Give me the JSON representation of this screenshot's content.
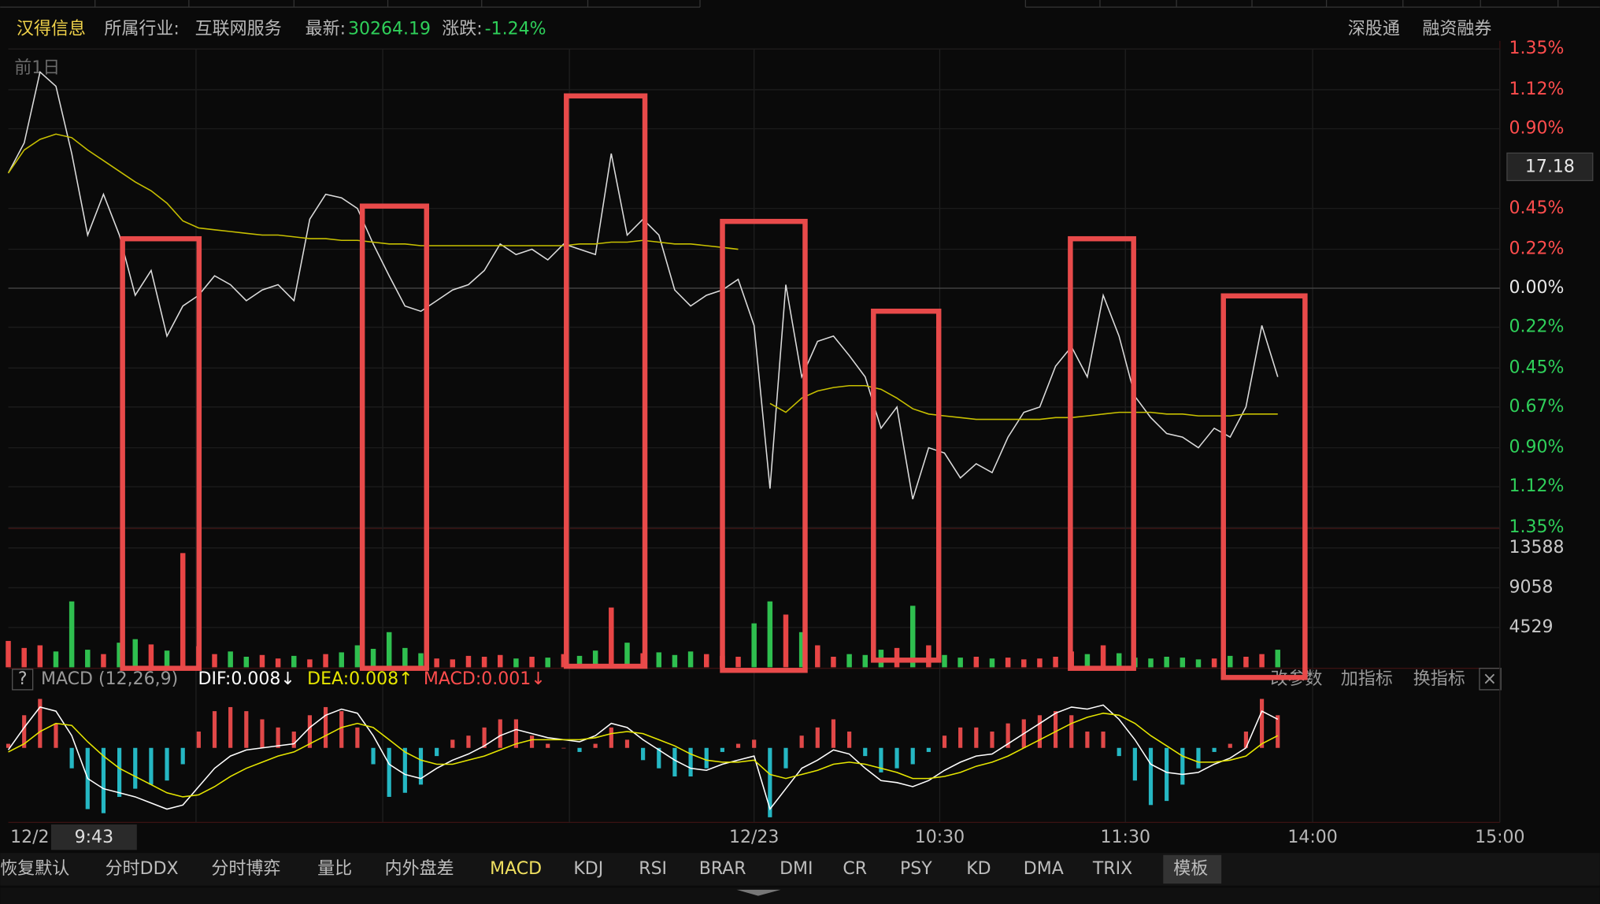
{
  "header": {
    "stock": "汉得信息",
    "industry_label": "所属行业:",
    "industry": "互联网服务",
    "latest_label": "最新:",
    "latest": "30264.19",
    "change_label": "涨跌:",
    "change": "-1.24%",
    "links": [
      "深股通",
      "融资融券"
    ]
  },
  "cursor": {
    "price": "17.18",
    "time": "9:43"
  },
  "chart_data": [
    {
      "type": "line",
      "annotation": "前1日",
      "series": [
        {
          "color": "#dcdcdc",
          "values": [
            0.65,
            0.82,
            1.22,
            1.14,
            0.76,
            0.3,
            0.53,
            0.3,
            -0.04,
            0.1,
            -0.27,
            -0.1,
            -0.04,
            0.07,
            0.02,
            -0.07,
            -0.01,
            0.02,
            -0.07,
            0.39,
            0.53,
            0.51,
            0.45,
            0.25,
            0.07,
            -0.1,
            -0.13,
            -0.07,
            -0.01,
            0.02,
            0.1,
            0.25,
            0.19,
            0.22,
            0.16,
            0.25,
            0.22,
            0.19,
            0.76,
            0.3,
            0.39,
            0.3,
            -0.01,
            -0.1,
            -0.04,
            -0.01,
            0.05,
            -0.21,
            -1.13,
            0.02,
            -0.5,
            -0.3,
            -0.27,
            -0.38,
            -0.5,
            -0.79,
            -0.67,
            -1.19,
            -0.9,
            -0.93,
            -1.07,
            -0.99,
            -1.04,
            -0.84,
            -0.7,
            -0.67,
            -0.44,
            -0.33,
            -0.5,
            -0.04,
            -0.27,
            -0.61,
            -0.73,
            -0.82,
            -0.84,
            -0.9,
            -0.79,
            -0.84,
            -0.67,
            -0.21,
            -0.5
          ]
        },
        {
          "color": "#c8c000",
          "values": [
            0.65,
            0.78,
            0.84,
            0.87,
            0.85,
            0.78,
            0.72,
            0.66,
            0.6,
            0.55,
            0.48,
            0.38,
            0.34,
            0.33,
            0.32,
            0.31,
            0.3,
            0.3,
            0.29,
            0.28,
            0.28,
            0.27,
            0.27,
            0.26,
            0.25,
            0.25,
            0.24,
            0.24,
            0.24,
            0.24,
            0.24,
            0.24,
            0.24,
            0.24,
            0.24,
            0.24,
            0.25,
            0.25,
            0.26,
            0.26,
            0.27,
            0.26,
            0.25,
            0.25,
            0.24,
            0.23,
            0.22,
            null,
            -0.65,
            -0.7,
            -0.62,
            -0.58,
            -0.56,
            -0.55,
            -0.55,
            -0.57,
            -0.62,
            -0.68,
            -0.71,
            -0.72,
            -0.73,
            -0.74,
            -0.74,
            -0.74,
            -0.74,
            -0.74,
            -0.73,
            -0.73,
            -0.72,
            -0.71,
            -0.7,
            -0.7,
            -0.7,
            -0.71,
            -0.71,
            -0.72,
            -0.72,
            -0.72,
            -0.71,
            -0.71,
            -0.71
          ]
        }
      ],
      "ylim": [
        -1.35,
        1.35
      ],
      "yticks": [
        {
          "value": 1.35,
          "label": "1.35%"
        },
        {
          "value": 1.12,
          "label": "1.12%"
        },
        {
          "value": 0.9,
          "label": "0.90%"
        },
        {
          "value": 0.45,
          "label": "0.45%"
        },
        {
          "value": 0.22,
          "label": "0.22%"
        },
        {
          "value": 0,
          "label": "0.00%"
        },
        {
          "value": -0.22,
          "label": "0.22%"
        },
        {
          "value": -0.45,
          "label": "0.45%"
        },
        {
          "value": -0.67,
          "label": "0.67%"
        },
        {
          "value": -0.9,
          "label": "0.90%"
        },
        {
          "value": -1.12,
          "label": "1.12%"
        },
        {
          "value": -1.35,
          "label": "1.35%"
        }
      ],
      "xlim": [
        0,
        94
      ],
      "xticks": [
        {
          "value": 0,
          "label": "12/2"
        },
        {
          "value": 47,
          "label": "12/23"
        },
        {
          "value": 58.7,
          "label": "10:30"
        },
        {
          "value": 70.4,
          "label": "11:30"
        },
        {
          "value": 82.2,
          "label": "14:00"
        },
        {
          "value": 94,
          "label": "15:00"
        }
      ],
      "up_color": "#ff4d4d",
      "flat_color": "#e8e8e8",
      "down_color": "#2fd05a"
    },
    {
      "type": "bar",
      "values": [
        3000,
        2200,
        2500,
        1800,
        7500,
        2000,
        1500,
        2800,
        3200,
        2600,
        1900,
        13000,
        2400,
        1500,
        1800,
        1200,
        1400,
        1000,
        1300,
        900,
        1500,
        1700,
        2500,
        2100,
        4000,
        2200,
        1600,
        1000,
        900,
        1300,
        1200,
        1400,
        1000,
        1200,
        1100,
        1500,
        1300,
        1900,
        6800,
        2800,
        1600,
        1700,
        1400,
        1800,
        1500,
        1300,
        1200,
        5000,
        7500,
        6000,
        4000,
        2500,
        1200,
        1500,
        1400,
        2000,
        2200,
        7000,
        2500,
        1400,
        1100,
        1200,
        1000,
        1100,
        900,
        1000,
        1200,
        1800,
        1500,
        2500,
        1600,
        1100,
        1000,
        1200,
        1100,
        900,
        1000,
        1300,
        1200,
        1500,
        2000
      ],
      "ylim": [
        0,
        13588
      ],
      "yticks": [
        4529,
        9058,
        13588
      ],
      "up_color": "#e84545",
      "down_color": "#2fbf4f"
    },
    {
      "type": "line",
      "series": [
        {
          "color": "#ffffff",
          "values": [
            -0.001,
            0.01,
            0.02,
            0.018,
            0.006,
            -0.015,
            -0.02,
            -0.022,
            -0.024,
            -0.027,
            -0.03,
            -0.028,
            -0.019,
            -0.01,
            -0.004,
            -0.001,
            0.0,
            0.001,
            0.002,
            0.01,
            0.016,
            0.019,
            0.017,
            0.006,
            -0.008,
            -0.013,
            -0.015,
            -0.01,
            -0.006,
            -0.003,
            0.001,
            0.006,
            0.009,
            0.007,
            0.005,
            0.004,
            0.003,
            0.006,
            0.012,
            0.01,
            0.004,
            -0.001,
            -0.006,
            -0.01,
            -0.011,
            -0.008,
            -0.006,
            -0.004,
            -0.03,
            -0.02,
            -0.01,
            -0.006,
            -0.001,
            -0.003,
            -0.01,
            -0.016,
            -0.017,
            -0.019,
            -0.016,
            -0.011,
            -0.007,
            -0.004,
            -0.003,
            0.002,
            0.007,
            0.012,
            0.017,
            0.02,
            0.019,
            0.021,
            0.014,
            0.004,
            -0.008,
            -0.012,
            -0.013,
            -0.012,
            -0.008,
            -0.005,
            0.0,
            0.018,
            0.014
          ]
        },
        {
          "color": "#e6e600",
          "values": [
            -0.002,
            0.002,
            0.008,
            0.012,
            0.011,
            0.003,
            -0.004,
            -0.01,
            -0.014,
            -0.018,
            -0.022,
            -0.024,
            -0.023,
            -0.019,
            -0.014,
            -0.01,
            -0.007,
            -0.004,
            -0.002,
            0.002,
            0.006,
            0.01,
            0.012,
            0.01,
            0.004,
            -0.002,
            -0.006,
            -0.008,
            -0.008,
            -0.006,
            -0.004,
            -0.001,
            0.002,
            0.004,
            0.004,
            0.004,
            0.004,
            0.005,
            0.007,
            0.008,
            0.007,
            0.004,
            0.001,
            -0.003,
            -0.006,
            -0.007,
            -0.007,
            -0.006,
            -0.013,
            -0.015,
            -0.013,
            -0.011,
            -0.008,
            -0.007,
            -0.008,
            -0.01,
            -0.012,
            -0.015,
            -0.015,
            -0.014,
            -0.012,
            -0.009,
            -0.007,
            -0.004,
            0.0,
            0.004,
            0.008,
            0.012,
            0.015,
            0.017,
            0.016,
            0.012,
            0.006,
            0.001,
            -0.004,
            -0.007,
            -0.007,
            -0.006,
            -0.004,
            0.002,
            0.006
          ]
        }
      ],
      "histogram": {
        "values": [
          0.002,
          0.016,
          0.024,
          0.012,
          -0.01,
          -0.03,
          -0.032,
          -0.024,
          -0.02,
          -0.018,
          -0.016,
          -0.008,
          0.008,
          0.018,
          0.02,
          0.018,
          0.014,
          0.01,
          0.008,
          0.016,
          0.02,
          0.018,
          0.01,
          -0.008,
          -0.024,
          -0.022,
          -0.018,
          -0.004,
          0.004,
          0.006,
          0.01,
          0.014,
          0.014,
          0.006,
          0.002,
          0.0,
          -0.002,
          0.002,
          0.01,
          0.004,
          -0.006,
          -0.01,
          -0.014,
          -0.014,
          -0.01,
          -0.002,
          0.002,
          0.004,
          -0.034,
          -0.01,
          0.006,
          0.01,
          0.014,
          0.008,
          -0.004,
          -0.012,
          -0.01,
          -0.008,
          -0.002,
          0.006,
          0.01,
          0.01,
          0.008,
          0.012,
          0.014,
          0.016,
          0.018,
          0.016,
          0.008,
          0.008,
          -0.004,
          -0.016,
          -0.028,
          -0.026,
          -0.018,
          -0.01,
          -0.002,
          0.002,
          0.008,
          0.024,
          0.016
        ],
        "up_color": "#e04848",
        "down_color": "#25b7c3"
      },
      "ylim": [
        -0.036,
        0.0265
      ]
    }
  ],
  "macd_header": {
    "help": "?",
    "name": "MACD (12,26,9)",
    "dif": "DIF:0.008↓",
    "dea": "DEA:0.008↑",
    "macd": "MACD:0.001↓",
    "actions": [
      "改参数",
      "加指标",
      "换指标",
      "×"
    ]
  },
  "tabs": [
    "恢复默认",
    "分时DDX",
    "分时博弈",
    "量比",
    "内外盘差",
    "MACD",
    "KDJ",
    "RSI",
    "BRAR",
    "DMI",
    "CR",
    "PSY",
    "KD",
    "DMA",
    "TRIX",
    "模板"
  ],
  "active_tab": 5
}
